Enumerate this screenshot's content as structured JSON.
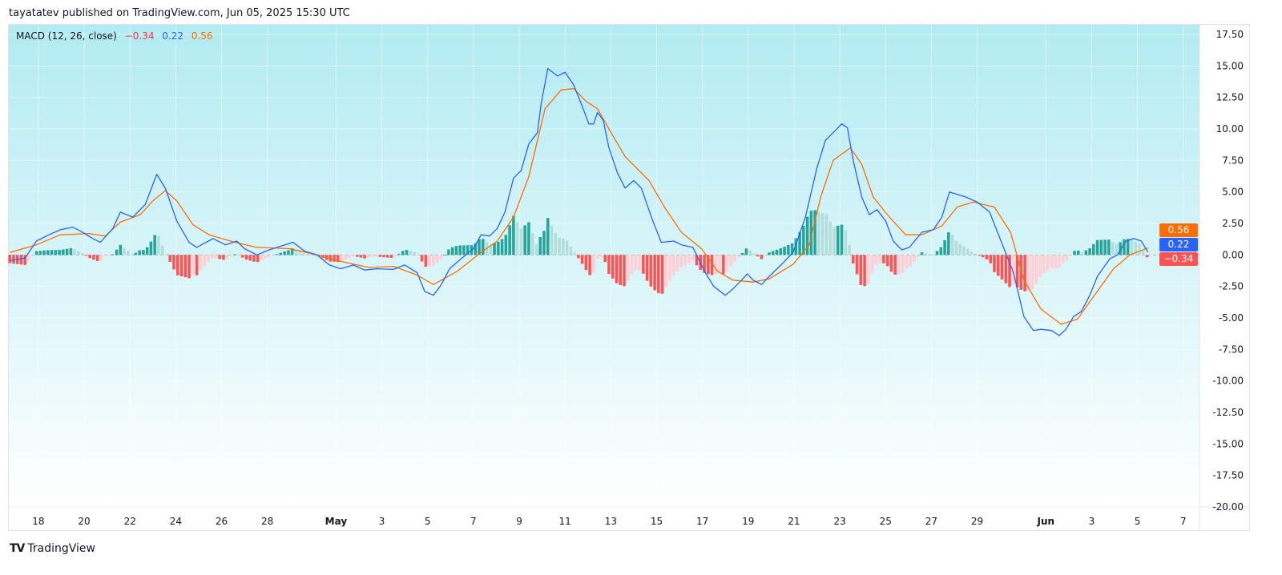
{
  "header": {
    "published": "tayatatev published on TradingView.com, Jun 05, 2025 15:30 UTC"
  },
  "legend": {
    "name": "MACD (12, 26, close)",
    "histogram": "−0.34",
    "macd": "0.22",
    "signal": "0.56"
  },
  "footer": {
    "brand": "TradingView",
    "logo_icon": "tradingview-logo-icon"
  },
  "badges": {
    "signal": "0.56",
    "macd": "0.22",
    "histogram": "−0.34"
  },
  "colors": {
    "macd": "#2962ff",
    "signal": "#ff6d00",
    "hist_up_strong": "#26a69a",
    "hist_up_weak": "#b2dfdb",
    "hist_down_strong": "#ff5252",
    "hist_down_weak": "#ffcdd2",
    "bg_top": "#b2ebf2",
    "bg_bottom": "#ffffff"
  },
  "chart_data": {
    "type": "line",
    "title": "",
    "ylim": [
      -20,
      17.5
    ],
    "y_ticks": [
      "17.50",
      "15.00",
      "12.50",
      "10.00",
      "7.50",
      "5.00",
      "2.50",
      "0.00",
      "-2.50",
      "-5.00",
      "-7.50",
      "-10.00",
      "-12.50",
      "-15.00",
      "-17.50",
      "-20.00"
    ],
    "xlim": [
      "2025-04-16T17:00",
      "2025-06-07T17:00"
    ],
    "x_ticks": [
      {
        "date": "2025-04-18",
        "label": "18"
      },
      {
        "date": "2025-04-20",
        "label": "20"
      },
      {
        "date": "2025-04-22",
        "label": "22"
      },
      {
        "date": "2025-04-24",
        "label": "24"
      },
      {
        "date": "2025-04-26",
        "label": "26"
      },
      {
        "date": "2025-04-28",
        "label": "28"
      },
      {
        "date": "2025-05-01",
        "label": "May",
        "bold": true
      },
      {
        "date": "2025-05-03",
        "label": "3"
      },
      {
        "date": "2025-05-05",
        "label": "5"
      },
      {
        "date": "2025-05-07",
        "label": "7"
      },
      {
        "date": "2025-05-09",
        "label": "9"
      },
      {
        "date": "2025-05-11",
        "label": "11"
      },
      {
        "date": "2025-05-13",
        "label": "13"
      },
      {
        "date": "2025-05-15",
        "label": "15"
      },
      {
        "date": "2025-05-17",
        "label": "17"
      },
      {
        "date": "2025-05-19",
        "label": "19"
      },
      {
        "date": "2025-05-21",
        "label": "21"
      },
      {
        "date": "2025-05-23",
        "label": "23"
      },
      {
        "date": "2025-05-25",
        "label": "25"
      },
      {
        "date": "2025-05-27",
        "label": "27"
      },
      {
        "date": "2025-05-29",
        "label": "29"
      },
      {
        "date": "2025-06-01",
        "label": "Jun",
        "bold": true
      },
      {
        "date": "2025-06-03",
        "label": "3"
      },
      {
        "date": "2025-06-05",
        "label": "5"
      },
      {
        "date": "2025-06-07",
        "label": "7"
      }
    ],
    "histogram_interval_hours": 4,
    "series": [
      {
        "key": "macd",
        "points": [
          [
            "2025-04-16T18:00",
            -0.45
          ],
          [
            "2025-04-17T10:00",
            -0.25
          ],
          [
            "2025-04-17T22:00",
            1.1
          ],
          [
            "2025-04-18T11:00",
            1.6
          ],
          [
            "2025-04-18T23:00",
            2.0
          ],
          [
            "2025-04-19T12:00",
            2.2
          ],
          [
            "2025-04-19T20:00",
            1.9
          ],
          [
            "2025-04-20T09:00",
            1.3
          ],
          [
            "2025-04-20T17:00",
            1.0
          ],
          [
            "2025-04-21T06:00",
            2.1
          ],
          [
            "2025-04-21T14:00",
            3.4
          ],
          [
            "2025-04-22T03:00",
            3.0
          ],
          [
            "2025-04-22T16:00",
            4.0
          ],
          [
            "2025-04-23T04:00",
            6.4
          ],
          [
            "2025-04-23T13:00",
            5.3
          ],
          [
            "2025-04-24T01:00",
            2.7
          ],
          [
            "2025-04-24T14:00",
            1.0
          ],
          [
            "2025-04-24T22:00",
            0.6
          ],
          [
            "2025-04-25T15:00",
            1.3
          ],
          [
            "2025-04-26T04:00",
            0.8
          ],
          [
            "2025-04-26T16:00",
            1.1
          ],
          [
            "2025-04-27T00:00",
            0.5
          ],
          [
            "2025-04-27T13:00",
            0.0
          ],
          [
            "2025-04-28T02:00",
            0.4
          ],
          [
            "2025-04-28T10:00",
            0.6
          ],
          [
            "2025-04-29T03:00",
            1.0
          ],
          [
            "2025-04-29T15:00",
            0.3
          ],
          [
            "2025-04-30T04:00",
            0.0
          ],
          [
            "2025-04-30T17:00",
            -0.8
          ],
          [
            "2025-05-01T05:00",
            -1.1
          ],
          [
            "2025-05-01T18:00",
            -0.8
          ],
          [
            "2025-05-02T06:00",
            -1.2
          ],
          [
            "2025-05-02T19:00",
            -1.1
          ],
          [
            "2025-05-03T12:00",
            -1.15
          ],
          [
            "2025-05-04T00:00",
            -0.8
          ],
          [
            "2025-05-04T13:00",
            -1.4
          ],
          [
            "2025-05-04T21:00",
            -2.9
          ],
          [
            "2025-05-05T06:00",
            -3.2
          ],
          [
            "2025-05-05T14:00",
            -2.4
          ],
          [
            "2025-05-05T23:00",
            -1.1
          ],
          [
            "2025-05-06T11:00",
            -0.3
          ],
          [
            "2025-05-07T00:00",
            0.5
          ],
          [
            "2025-05-07T08:00",
            1.6
          ],
          [
            "2025-05-07T17:00",
            1.5
          ],
          [
            "2025-05-08T01:00",
            2.1
          ],
          [
            "2025-05-08T09:00",
            3.4
          ],
          [
            "2025-05-08T18:00",
            6.1
          ],
          [
            "2025-05-09T02:00",
            6.7
          ],
          [
            "2025-05-09T10:00",
            8.8
          ],
          [
            "2025-05-09T19:00",
            9.7
          ],
          [
            "2025-05-09T23:00",
            12.0
          ],
          [
            "2025-05-10T06:00",
            14.8
          ],
          [
            "2025-05-10T16:00",
            14.2
          ],
          [
            "2025-05-11T00:00",
            14.5
          ],
          [
            "2025-05-11T09:00",
            13.5
          ],
          [
            "2025-05-11T17:00",
            12.0
          ],
          [
            "2025-05-12T01:00",
            10.4
          ],
          [
            "2025-05-12T06:00",
            10.4
          ],
          [
            "2025-05-12T10:00",
            11.3
          ],
          [
            "2025-05-12T16:00",
            10.7
          ],
          [
            "2025-05-12T22:00",
            8.5
          ],
          [
            "2025-05-13T07:00",
            6.5
          ],
          [
            "2025-05-13T15:00",
            5.3
          ],
          [
            "2025-05-14T00:00",
            5.9
          ],
          [
            "2025-05-14T08:00",
            5.3
          ],
          [
            "2025-05-14T20:00",
            2.7
          ],
          [
            "2025-05-15T05:00",
            1.0
          ],
          [
            "2025-05-15T18:00",
            1.1
          ],
          [
            "2025-05-16T02:00",
            0.8
          ],
          [
            "2025-05-16T14:00",
            0.6
          ],
          [
            "2025-05-17T03:00",
            -1.4
          ],
          [
            "2025-05-17T12:00",
            -2.5
          ],
          [
            "2025-05-18T00:00",
            -3.2
          ],
          [
            "2025-05-18T08:00",
            -2.7
          ],
          [
            "2025-05-18T17:00",
            -2.0
          ],
          [
            "2025-05-18T23:00",
            -1.5
          ],
          [
            "2025-05-19T05:00",
            -2.0
          ],
          [
            "2025-05-19T14:00",
            -2.35
          ],
          [
            "2025-05-19T22:00",
            -1.7
          ],
          [
            "2025-05-20T11:00",
            -0.75
          ],
          [
            "2025-05-20T23:00",
            0.2
          ],
          [
            "2025-05-21T12:00",
            3.0
          ],
          [
            "2025-05-22T00:00",
            6.9
          ],
          [
            "2025-05-22T09:00",
            9.1
          ],
          [
            "2025-05-22T17:00",
            9.7
          ],
          [
            "2025-05-23T02:00",
            10.4
          ],
          [
            "2025-05-23T08:00",
            10.1
          ],
          [
            "2025-05-23T14:00",
            7.5
          ],
          [
            "2025-05-23T23:00",
            4.6
          ],
          [
            "2025-05-24T07:00",
            3.2
          ],
          [
            "2025-05-24T15:00",
            3.6
          ],
          [
            "2025-05-25T00:00",
            2.7
          ],
          [
            "2025-05-25T08:00",
            1.1
          ],
          [
            "2025-05-25T17:00",
            0.4
          ],
          [
            "2025-05-26T01:00",
            0.6
          ],
          [
            "2025-05-26T14:00",
            1.8
          ],
          [
            "2025-05-27T02:00",
            2.0
          ],
          [
            "2025-05-27T11:00",
            3.0
          ],
          [
            "2025-05-27T19:00",
            5.0
          ],
          [
            "2025-05-28T03:00",
            4.8
          ],
          [
            "2025-05-28T12:00",
            4.6
          ],
          [
            "2025-05-29T00:00",
            4.2
          ],
          [
            "2025-05-29T13:00",
            3.4
          ],
          [
            "2025-05-30T01:00",
            1.1
          ],
          [
            "2025-05-30T14:00",
            -1.4
          ],
          [
            "2025-05-31T01:00",
            -4.9
          ],
          [
            "2025-05-31T11:00",
            -6.0
          ],
          [
            "2025-05-31T19:00",
            -5.9
          ],
          [
            "2025-06-01T06:00",
            -6.0
          ],
          [
            "2025-06-01T14:00",
            -6.4
          ],
          [
            "2025-06-01T21:00",
            -5.9
          ],
          [
            "2025-06-02T05:00",
            -4.9
          ],
          [
            "2025-06-02T13:00",
            -4.5
          ],
          [
            "2025-06-02T22:00",
            -3.2
          ],
          [
            "2025-06-03T06:00",
            -1.7
          ],
          [
            "2025-06-03T19:00",
            -0.3
          ],
          [
            "2025-06-04T03:00",
            0.0
          ],
          [
            "2025-06-04T12:00",
            1.1
          ],
          [
            "2025-06-04T20:00",
            1.3
          ],
          [
            "2025-06-05T04:00",
            1.1
          ],
          [
            "2025-06-05T11:00",
            0.22
          ]
        ]
      },
      {
        "key": "signal",
        "points": [
          [
            "2025-04-16T18:00",
            0.2
          ],
          [
            "2025-04-17T22:00",
            0.8
          ],
          [
            "2025-04-18T23:00",
            1.6
          ],
          [
            "2025-04-20T05:00",
            1.7
          ],
          [
            "2025-04-20T22:00",
            1.5
          ],
          [
            "2025-04-21T14:00",
            2.6
          ],
          [
            "2025-04-22T11:00",
            3.2
          ],
          [
            "2025-04-23T00:00",
            4.3
          ],
          [
            "2025-04-23T13:00",
            5.1
          ],
          [
            "2025-04-24T01:00",
            4.3
          ],
          [
            "2025-04-24T18:00",
            2.4
          ],
          [
            "2025-04-25T11:00",
            1.6
          ],
          [
            "2025-04-26T14:00",
            1.0
          ],
          [
            "2025-04-27T13:00",
            0.6
          ],
          [
            "2025-04-28T23:00",
            0.5
          ],
          [
            "2025-04-30T04:00",
            0.0
          ],
          [
            "2025-05-01T01:00",
            -0.45
          ],
          [
            "2025-05-02T11:00",
            -1.0
          ],
          [
            "2025-05-03T12:00",
            -0.9
          ],
          [
            "2025-05-04T13:00",
            -1.6
          ],
          [
            "2025-05-05T06:00",
            -2.35
          ],
          [
            "2025-05-06T07:00",
            -1.3
          ],
          [
            "2025-05-07T08:00",
            0.2
          ],
          [
            "2025-05-08T01:00",
            1.1
          ],
          [
            "2025-05-08T18:00",
            3.0
          ],
          [
            "2025-05-09T10:00",
            6.2
          ],
          [
            "2025-05-10T03:00",
            11.6
          ],
          [
            "2025-05-10T20:00",
            13.1
          ],
          [
            "2025-05-11T09:00",
            13.2
          ],
          [
            "2025-05-11T22:00",
            12.2
          ],
          [
            "2025-05-12T10:00",
            11.6
          ],
          [
            "2025-05-12T22:00",
            10.0
          ],
          [
            "2025-05-13T15:00",
            7.8
          ],
          [
            "2025-05-14T16:00",
            5.9
          ],
          [
            "2025-05-15T09:00",
            3.7
          ],
          [
            "2025-05-16T02:00",
            1.8
          ],
          [
            "2025-05-16T23:00",
            0.5
          ],
          [
            "2025-05-17T16:00",
            -1.3
          ],
          [
            "2025-05-18T08:00",
            -2.0
          ],
          [
            "2025-05-19T05:00",
            -2.15
          ],
          [
            "2025-05-19T22:00",
            -1.9
          ],
          [
            "2025-05-20T23:00",
            -0.75
          ],
          [
            "2025-05-21T16:00",
            0.8
          ],
          [
            "2025-05-22T04:00",
            4.6
          ],
          [
            "2025-05-22T17:00",
            7.5
          ],
          [
            "2025-05-23T11:00",
            8.5
          ],
          [
            "2025-05-23T23:00",
            7.2
          ],
          [
            "2025-05-24T11:00",
            4.6
          ],
          [
            "2025-05-25T04:00",
            3.0
          ],
          [
            "2025-05-25T21:00",
            1.6
          ],
          [
            "2025-05-26T14:00",
            1.6
          ],
          [
            "2025-05-27T11:00",
            2.3
          ],
          [
            "2025-05-28T03:00",
            3.8
          ],
          [
            "2025-05-28T20:00",
            4.2
          ],
          [
            "2025-05-29T18:00",
            3.8
          ],
          [
            "2025-05-30T11:00",
            1.8
          ],
          [
            "2025-05-31T01:00",
            -2.0
          ],
          [
            "2025-05-31T19:00",
            -4.3
          ],
          [
            "2025-06-01T16:00",
            -5.5
          ],
          [
            "2025-06-02T09:00",
            -5.1
          ],
          [
            "2025-06-03T02:00",
            -3.3
          ],
          [
            "2025-06-03T23:00",
            -1.1
          ],
          [
            "2025-06-04T16:00",
            0.0
          ],
          [
            "2025-06-05T11:00",
            0.56
          ]
        ]
      }
    ]
  }
}
